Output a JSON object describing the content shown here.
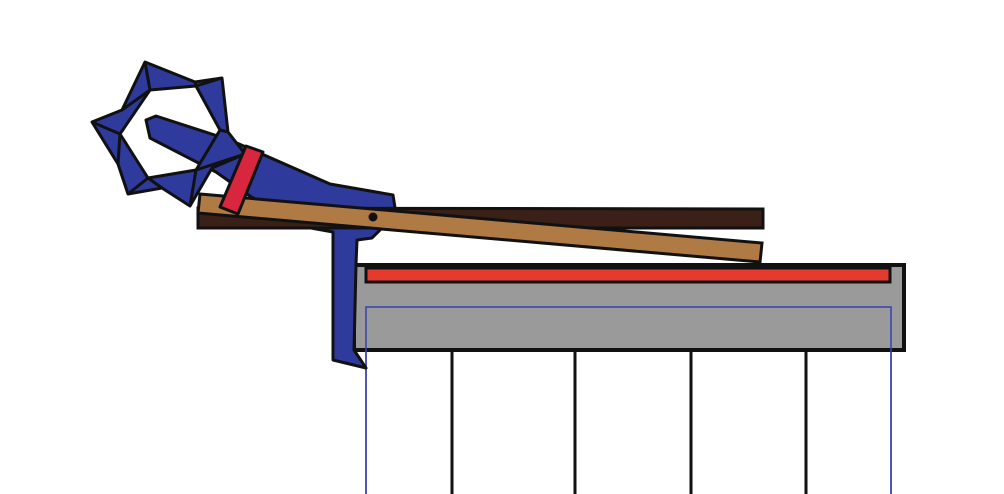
{
  "scene": {
    "description_text": "",
    "colors": {
      "background": "#ffffff",
      "outline": "#111111",
      "catapult_arm_blue": "#2e3a9c",
      "star_wheel_blue": "#2e3a9c",
      "strap_red": "#d7263d",
      "plank_light": "#b07a45",
      "plank_dark": "#3a2016",
      "table_top_red": "#e53b2e",
      "table_gray": "#9a9a9a",
      "table_thin_blue": "#3a3fae",
      "table_legs": "#111111"
    },
    "icons": {
      "gear": "star-wheel-icon",
      "pivot": "pivot-dot-icon"
    }
  }
}
